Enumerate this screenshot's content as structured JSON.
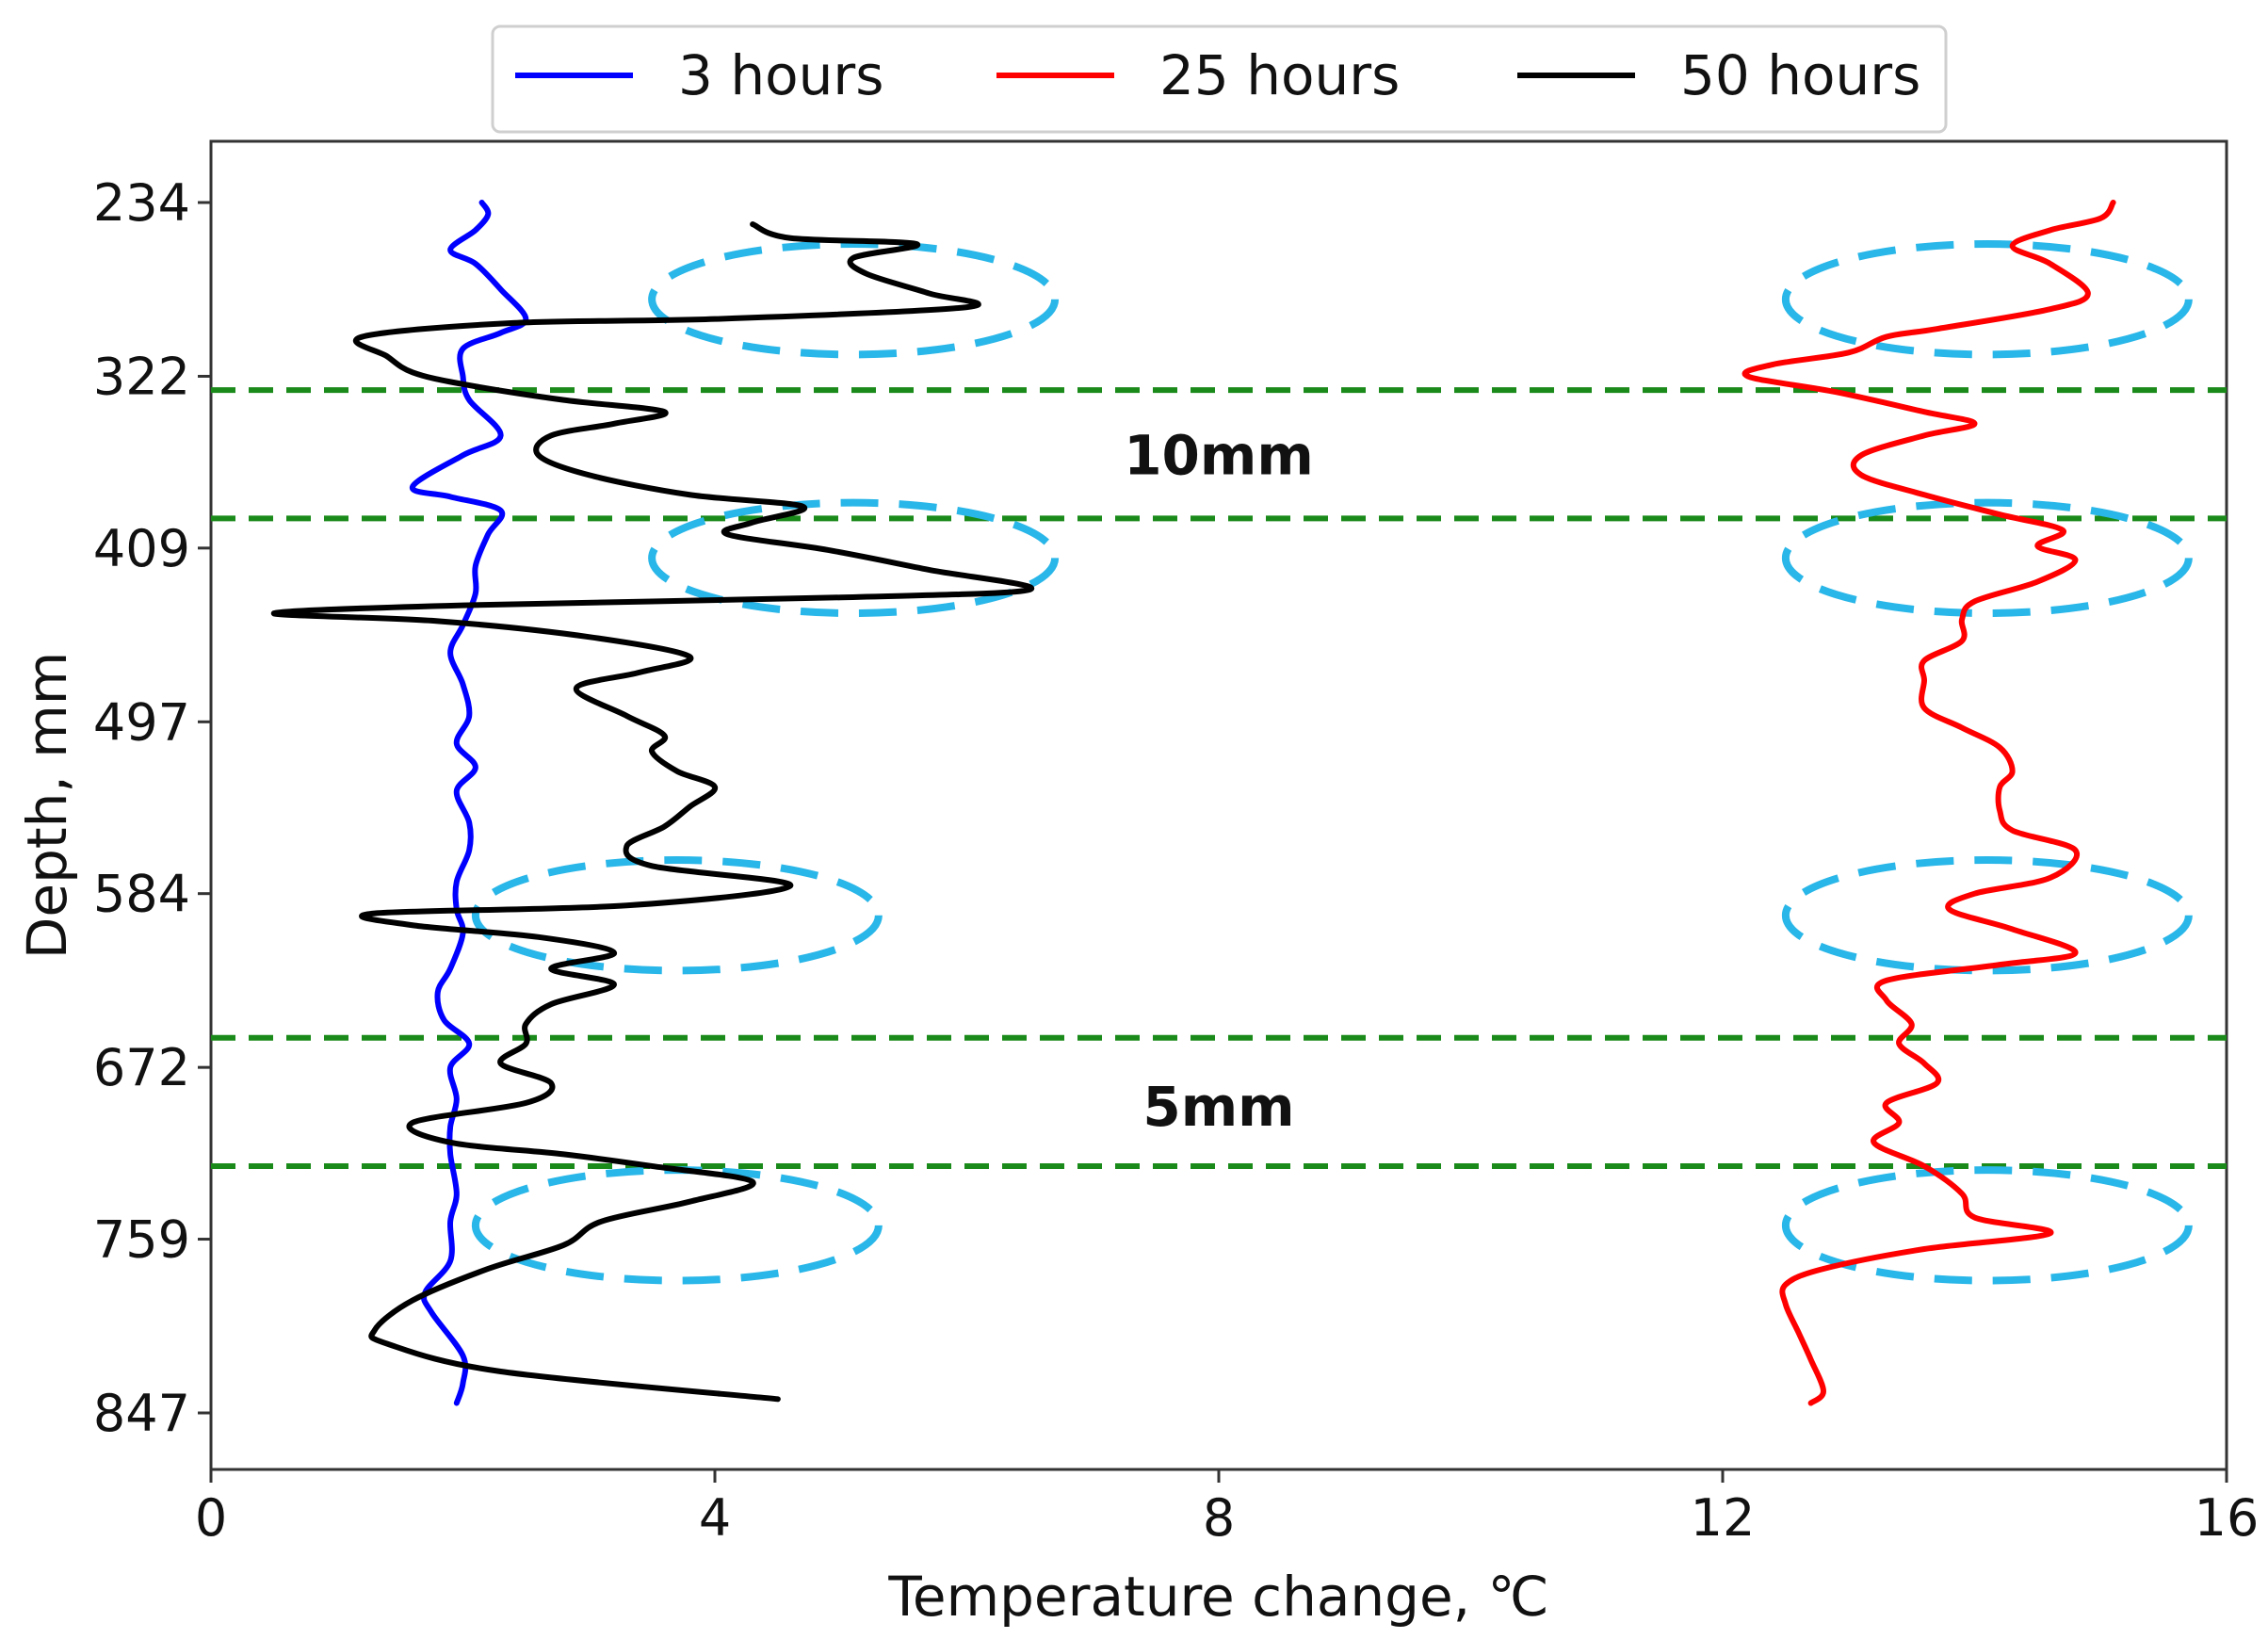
{
  "chart_data": {
    "type": "line",
    "xlabel": "Temperature change, ℃",
    "ylabel": "Depth, mm",
    "xlim": [
      0,
      16
    ],
    "ylim": [
      847,
      234
    ],
    "y_inverted": true,
    "xticks": [
      0,
      4,
      8,
      12,
      16
    ],
    "xtick_labels": [
      "0",
      "4",
      "8",
      "12",
      "16"
    ],
    "yticks": [
      234,
      322,
      409,
      497,
      584,
      672,
      759,
      847
    ],
    "ytick_labels": [
      "234",
      "322",
      "409",
      "497",
      "584",
      "672",
      "759",
      "847"
    ],
    "grid": false,
    "legend": {
      "position": "top-center",
      "orientation": "horizontal"
    },
    "series": [
      {
        "name": "3 hours",
        "color": "#0000ff",
        "points": [
          [
            2.15,
            234
          ],
          [
            2.2,
            240
          ],
          [
            2.1,
            248
          ],
          [
            1.9,
            258
          ],
          [
            2.1,
            265
          ],
          [
            2.3,
            278
          ],
          [
            2.5,
            293
          ],
          [
            2.3,
            300
          ],
          [
            2.0,
            308
          ],
          [
            2.0,
            322
          ],
          [
            2.05,
            334
          ],
          [
            2.3,
            352
          ],
          [
            2.0,
            362
          ],
          [
            1.6,
            378
          ],
          [
            1.9,
            383
          ],
          [
            2.3,
            390
          ],
          [
            2.2,
            402
          ],
          [
            2.1,
            418
          ],
          [
            2.1,
            432
          ],
          [
            2.0,
            448
          ],
          [
            1.9,
            462
          ],
          [
            2.0,
            478
          ],
          [
            2.05,
            494
          ],
          [
            1.95,
            508
          ],
          [
            2.1,
            520
          ],
          [
            1.95,
            532
          ],
          [
            2.05,
            548
          ],
          [
            2.05,
            562
          ],
          [
            1.95,
            578
          ],
          [
            1.95,
            592
          ],
          [
            2.0,
            604
          ],
          [
            1.9,
            622
          ],
          [
            1.8,
            634
          ],
          [
            1.85,
            648
          ],
          [
            2.05,
            660
          ],
          [
            1.9,
            672
          ],
          [
            1.95,
            688
          ],
          [
            1.9,
            702
          ],
          [
            1.9,
            716
          ],
          [
            1.95,
            736
          ],
          [
            1.9,
            750
          ],
          [
            1.9,
            770
          ],
          [
            1.7,
            786
          ],
          [
            1.75,
            796
          ],
          [
            2.0,
            818
          ],
          [
            2.0,
            832
          ],
          [
            1.95,
            842
          ]
        ]
      },
      {
        "name": "25 hours",
        "color": "#ff0000",
        "points": [
          [
            15.1,
            234
          ],
          [
            15.0,
            242
          ],
          [
            14.6,
            248
          ],
          [
            14.3,
            256
          ],
          [
            14.6,
            265
          ],
          [
            14.9,
            280
          ],
          [
            14.6,
            288
          ],
          [
            13.7,
            298
          ],
          [
            13.3,
            302
          ],
          [
            13.0,
            310
          ],
          [
            12.4,
            316
          ],
          [
            12.2,
            322
          ],
          [
            12.9,
            330
          ],
          [
            13.6,
            340
          ],
          [
            14.0,
            346
          ],
          [
            13.6,
            352
          ],
          [
            13.1,
            362
          ],
          [
            13.1,
            372
          ],
          [
            13.6,
            382
          ],
          [
            14.2,
            392
          ],
          [
            14.7,
            400
          ],
          [
            14.5,
            408
          ],
          [
            14.8,
            415
          ],
          [
            14.5,
            426
          ],
          [
            14.0,
            436
          ],
          [
            13.9,
            445
          ],
          [
            13.9,
            456
          ],
          [
            13.6,
            466
          ],
          [
            13.6,
            476
          ],
          [
            13.6,
            490
          ],
          [
            13.9,
            500
          ],
          [
            14.2,
            510
          ],
          [
            14.3,
            522
          ],
          [
            14.2,
            530
          ],
          [
            14.2,
            542
          ],
          [
            14.3,
            552
          ],
          [
            14.8,
            562
          ],
          [
            14.6,
            576
          ],
          [
            14.0,
            584
          ],
          [
            13.8,
            592
          ],
          [
            14.3,
            602
          ],
          [
            14.8,
            614
          ],
          [
            14.2,
            620
          ],
          [
            13.3,
            628
          ],
          [
            13.3,
            638
          ],
          [
            13.5,
            650
          ],
          [
            13.4,
            660
          ],
          [
            13.6,
            670
          ],
          [
            13.7,
            680
          ],
          [
            13.3,
            690
          ],
          [
            13.4,
            700
          ],
          [
            13.2,
            710
          ],
          [
            13.6,
            722
          ],
          [
            13.9,
            736
          ],
          [
            14.0,
            748
          ],
          [
            14.6,
            756
          ],
          [
            13.6,
            764
          ],
          [
            12.8,
            774
          ],
          [
            12.5,
            782
          ],
          [
            12.5,
            792
          ],
          [
            12.6,
            806
          ],
          [
            12.7,
            820
          ],
          [
            12.8,
            836
          ],
          [
            12.7,
            842
          ]
        ]
      },
      {
        "name": "50 hours",
        "color": "#000000",
        "points": [
          [
            4.3,
            245
          ],
          [
            4.6,
            252
          ],
          [
            5.6,
            255
          ],
          [
            5.1,
            262
          ],
          [
            5.2,
            270
          ],
          [
            5.7,
            280
          ],
          [
            6.0,
            287
          ],
          [
            4.0,
            293
          ],
          [
            2.4,
            295
          ],
          [
            1.2,
            302
          ],
          [
            1.4,
            312
          ],
          [
            1.6,
            320
          ],
          [
            2.0,
            326
          ],
          [
            2.8,
            334
          ],
          [
            3.6,
            340
          ],
          [
            3.2,
            346
          ],
          [
            2.7,
            352
          ],
          [
            2.6,
            362
          ],
          [
            3.0,
            372
          ],
          [
            3.8,
            382
          ],
          [
            4.7,
            388
          ],
          [
            4.3,
            396
          ],
          [
            4.1,
            402
          ],
          [
            4.9,
            410
          ],
          [
            5.7,
            420
          ],
          [
            6.5,
            430
          ],
          [
            5.0,
            434
          ],
          [
            2.0,
            438
          ],
          [
            0.5,
            442
          ],
          [
            1.8,
            446
          ],
          [
            3.0,
            454
          ],
          [
            3.8,
            464
          ],
          [
            3.4,
            472
          ],
          [
            2.9,
            480
          ],
          [
            3.3,
            494
          ],
          [
            3.6,
            504
          ],
          [
            3.5,
            512
          ],
          [
            3.7,
            522
          ],
          [
            4.0,
            530
          ],
          [
            3.8,
            540
          ],
          [
            3.6,
            550
          ],
          [
            3.3,
            560
          ],
          [
            3.5,
            570
          ],
          [
            4.6,
            580
          ],
          [
            3.3,
            590
          ],
          [
            1.3,
            594
          ],
          [
            1.6,
            600
          ],
          [
            2.6,
            606
          ],
          [
            3.2,
            614
          ],
          [
            2.7,
            622
          ],
          [
            3.2,
            630
          ],
          [
            2.7,
            640
          ],
          [
            2.5,
            650
          ],
          [
            2.5,
            660
          ],
          [
            2.3,
            670
          ],
          [
            2.7,
            680
          ],
          [
            2.5,
            690
          ],
          [
            1.6,
            700
          ],
          [
            1.9,
            710
          ],
          [
            2.8,
            716
          ],
          [
            3.5,
            722
          ],
          [
            4.3,
            730
          ],
          [
            3.8,
            740
          ],
          [
            3.1,
            750
          ],
          [
            2.8,
            762
          ],
          [
            2.2,
            774
          ],
          [
            1.6,
            790
          ],
          [
            1.3,
            805
          ],
          [
            1.4,
            812
          ],
          [
            2.3,
            826
          ],
          [
            4.5,
            840
          ]
        ]
      }
    ],
    "reference_lines": [
      {
        "axis": "y",
        "value": 329,
        "color": "#1a8a1a",
        "style": "dashed"
      },
      {
        "axis": "y",
        "value": 394,
        "color": "#1a8a1a",
        "style": "dashed"
      },
      {
        "axis": "y",
        "value": 657,
        "color": "#1a8a1a",
        "style": "dashed"
      },
      {
        "axis": "y",
        "value": 722,
        "color": "#1a8a1a",
        "style": "dashed"
      }
    ],
    "annotations": [
      {
        "text": "10mm",
        "x": 8.0,
        "y": 362
      },
      {
        "text": "5mm",
        "x": 8.0,
        "y": 692
      }
    ],
    "highlight_ellipses": [
      {
        "cx": 5.1,
        "cy": 283,
        "rx": 1.6,
        "ry": 28,
        "color": "#29b6e8"
      },
      {
        "cx": 5.1,
        "cy": 414,
        "rx": 1.6,
        "ry": 28,
        "color": "#29b6e8"
      },
      {
        "cx": 3.7,
        "cy": 595,
        "rx": 1.6,
        "ry": 28,
        "color": "#29b6e8"
      },
      {
        "cx": 3.7,
        "cy": 752,
        "rx": 1.6,
        "ry": 28,
        "color": "#29b6e8"
      },
      {
        "cx": 14.1,
        "cy": 283,
        "rx": 1.6,
        "ry": 28,
        "color": "#29b6e8"
      },
      {
        "cx": 14.1,
        "cy": 414,
        "rx": 1.6,
        "ry": 28,
        "color": "#29b6e8"
      },
      {
        "cx": 14.1,
        "cy": 595,
        "rx": 1.6,
        "ry": 28,
        "color": "#29b6e8"
      },
      {
        "cx": 14.1,
        "cy": 752,
        "rx": 1.6,
        "ry": 28,
        "color": "#29b6e8"
      }
    ]
  }
}
